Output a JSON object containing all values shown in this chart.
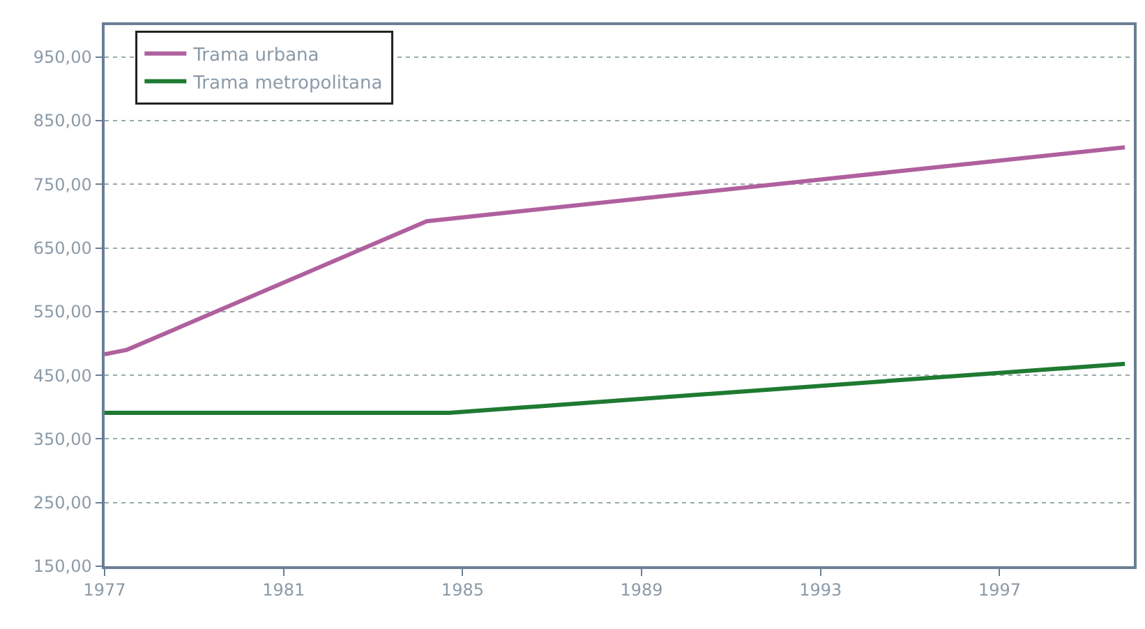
{
  "chart_data": {
    "type": "line",
    "x": [
      1977,
      1977.5,
      1984.2,
      1999.8
    ],
    "series": [
      {
        "name": "Trama urbana",
        "color": "#b0609e",
        "values": [
          483,
          490,
          692,
          808
        ]
      },
      {
        "name": "Trama metropolitana",
        "color": "#1f7a32",
        "x": [
          1977,
          1977.5,
          1984.7,
          1999.8
        ],
        "values": [
          391,
          391,
          391,
          468
        ]
      }
    ],
    "xlim": [
      1977,
      2000
    ],
    "xticks": [
      1977,
      1981,
      1985,
      1989,
      1993,
      1997
    ],
    "ylim": [
      150,
      1000
    ],
    "yticks": [
      {
        "value": 150,
        "label": "150,00"
      },
      {
        "value": 250,
        "label": "250,00"
      },
      {
        "value": 350,
        "label": "350,00"
      },
      {
        "value": 450,
        "label": "450,00"
      },
      {
        "value": 550,
        "label": "550,00"
      },
      {
        "value": 650,
        "label": "650,00"
      },
      {
        "value": 750,
        "label": "750,00"
      },
      {
        "value": 850,
        "label": "850,00"
      },
      {
        "value": 950,
        "label": "950,00"
      }
    ],
    "grid": "y",
    "legend": "top left",
    "marker": "none",
    "line_style": "solid"
  }
}
